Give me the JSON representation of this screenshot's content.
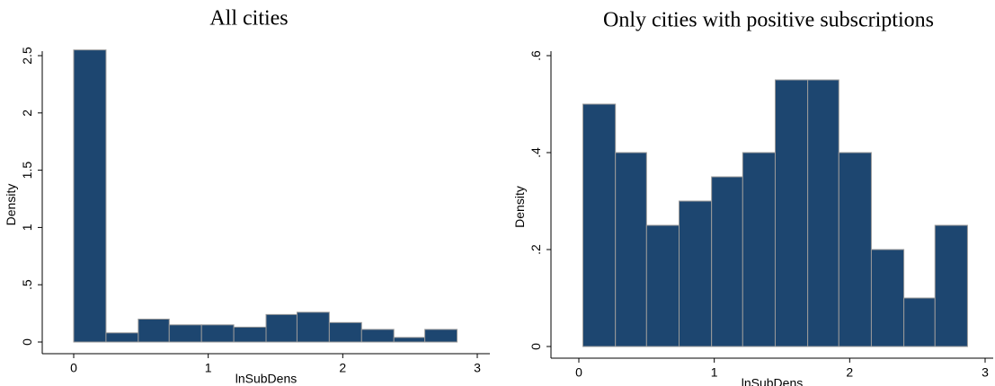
{
  "chart_data": [
    {
      "type": "histogram",
      "title": "All cities",
      "x_label": "lnSubDens",
      "y_label": "Density",
      "bins": [
        0,
        0.24,
        0.48,
        0.71,
        0.95,
        1.19,
        1.43,
        1.66,
        1.9,
        2.14,
        2.38,
        2.61,
        2.85
      ],
      "values": [
        2.55,
        0.08,
        0.2,
        0.15,
        0.15,
        0.13,
        0.24,
        0.26,
        0.17,
        0.11,
        0.04,
        0.11
      ],
      "color": "#1d4670",
      "xlim": [
        0,
        3
      ],
      "xticks": [
        0,
        1,
        2,
        3
      ],
      "ylim": [
        0,
        2.5
      ],
      "yticks": [
        0,
        {
          "value": 0.5,
          "label": ".5"
        },
        1,
        1.5,
        2,
        2.5
      ]
    },
    {
      "type": "histogram",
      "title": "Only cities with positive subscriptions",
      "x_label": "lnSubDens",
      "y_label": "Density",
      "bins": [
        0.03,
        0.27,
        0.5,
        0.74,
        0.98,
        1.21,
        1.45,
        1.69,
        1.92,
        2.16,
        2.4,
        2.63,
        2.87
      ],
      "values": [
        0.5,
        0.4,
        0.25,
        0.3,
        0.35,
        0.4,
        0.55,
        0.55,
        0.4,
        0.2,
        0.1,
        0.25
      ],
      "color": "#1d4670",
      "xlim": [
        0,
        3
      ],
      "xticks": [
        0,
        1,
        2,
        3
      ],
      "ylim": [
        0,
        0.6
      ],
      "yticks": [
        0,
        {
          "value": 0.2,
          "label": ".2"
        },
        {
          "value": 0.4,
          "label": ".4"
        },
        {
          "value": 0.6,
          "label": ".6"
        }
      ]
    }
  ]
}
